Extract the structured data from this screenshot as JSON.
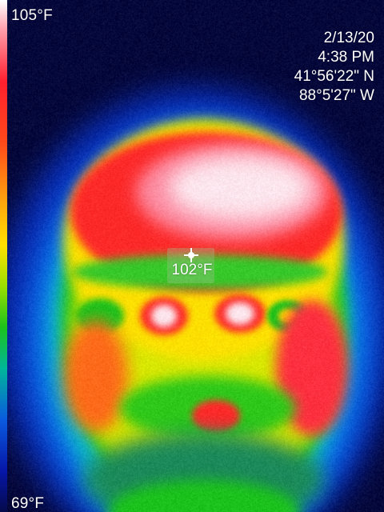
{
  "scale": {
    "max_label": "105°F",
    "min_label": "69°F"
  },
  "info": {
    "date": "2/13/20",
    "time": "4:38 PM",
    "latitude": "41°56'22\" N",
    "longitude": "88°5'27\" W"
  },
  "spot": {
    "temperature": "102°F"
  },
  "colors": {
    "background": "#05083a",
    "hot": "#ff1f2e",
    "warm": "#ffe000",
    "mid": "#1cc21c",
    "cool": "#0a5ae0"
  }
}
